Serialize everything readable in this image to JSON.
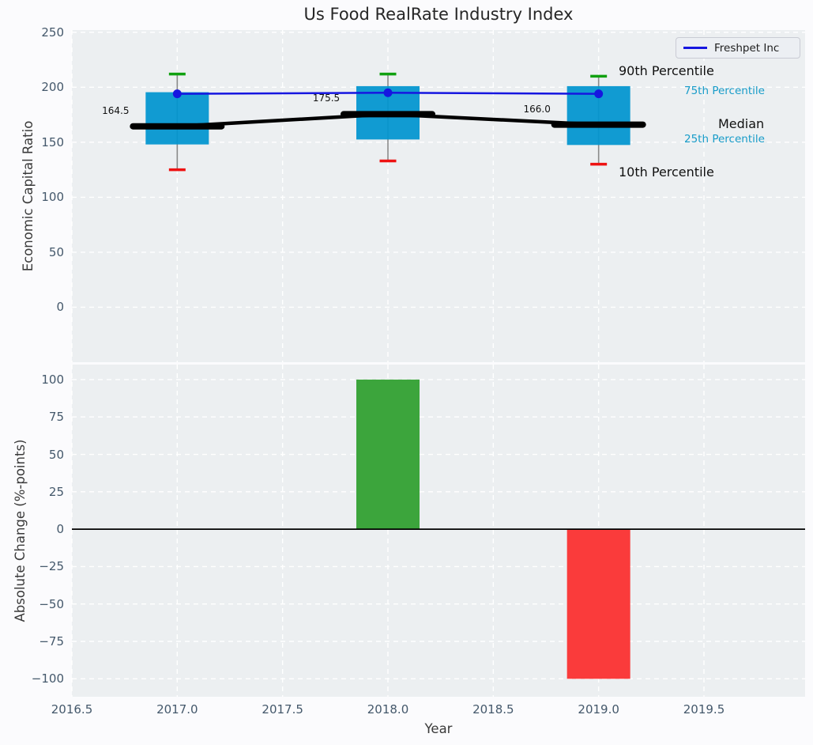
{
  "title": "Us Food RealRate Industry Index",
  "legend": {
    "label": "Freshpet Inc"
  },
  "axis": {
    "top_ylabel": "Economic Capital Ratio",
    "bottom_ylabel": "Absolute Change (%-points)",
    "xlabel": "Year"
  },
  "annotations": {
    "p90": "90th Percentile",
    "p75": "75th Percentile",
    "median": "Median",
    "p25": "25th Percentile",
    "p10": "10th Percentile"
  },
  "colors": {
    "figure_background": "#FBFBFD",
    "axes_background": "#ECEFF1",
    "grid": "#FFFFFF",
    "box_fill": "#0095D0",
    "median": "#000000",
    "company_line": "#1616E0",
    "whisker": "#8A8A8A",
    "cap_top": "#10A010",
    "cap_bottom": "#EE1212",
    "bar_positive": "#3CA53C",
    "bar_negative": "#FA3B3B",
    "zero_line": "#000000",
    "tick_label": "#44586B",
    "annotation_accent": "#189CC9"
  },
  "chart_data": [
    {
      "type": "boxplot",
      "title": "Us Food RealRate Industry Index",
      "ylabel": "Economic Capital Ratio",
      "x": [
        2017,
        2018,
        2019
      ],
      "series": [
        {
          "name": "10th Percentile",
          "values": [
            125,
            133,
            130
          ]
        },
        {
          "name": "25th Percentile",
          "values": [
            148,
            152.5,
            147.5
          ]
        },
        {
          "name": "Median",
          "values": [
            164.5,
            175.5,
            166.0
          ]
        },
        {
          "name": "75th Percentile",
          "values": [
            195.5,
            201,
            201
          ]
        },
        {
          "name": "90th Percentile",
          "values": [
            212,
            212,
            210
          ]
        },
        {
          "name": "Freshpet Inc",
          "values": [
            194,
            195,
            194
          ]
        }
      ],
      "median_labels": [
        "164.5",
        "175.5",
        "166.0"
      ],
      "ylim": [
        -50,
        252
      ],
      "yticks": [
        0,
        50,
        100,
        150,
        200,
        250
      ],
      "xlim": [
        2016.5,
        2019.98
      ],
      "grid": true,
      "legend_position": "upper right"
    },
    {
      "type": "bar",
      "ylabel": "Absolute Change (%-points)",
      "xlabel": "Year",
      "x": [
        2018,
        2019
      ],
      "values": [
        100.0,
        -100.0
      ],
      "ylim": [
        -112,
        110
      ],
      "yticks": [
        100,
        75,
        50,
        25,
        0,
        -25,
        -50,
        -75,
        -100
      ],
      "xticks": [
        2016.5,
        2017.0,
        2017.5,
        2018.0,
        2018.5,
        2019.0,
        2019.5
      ],
      "bar_width_years": 0.3,
      "grid": true
    }
  ]
}
